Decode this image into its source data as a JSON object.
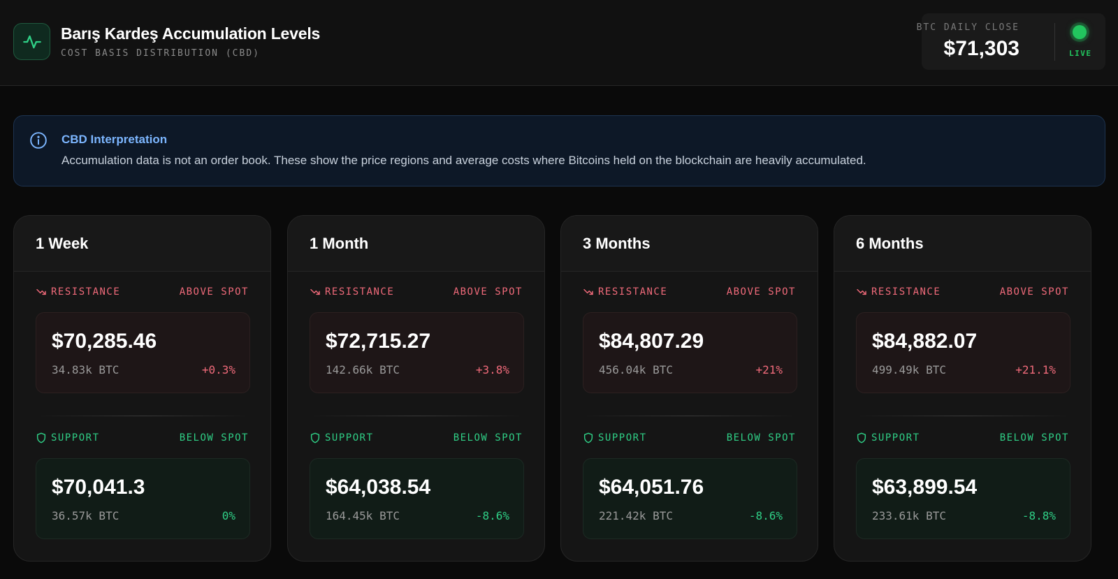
{
  "header": {
    "title": "Barış Kardeş Accumulation Levels",
    "subtitle": "COST BASIS DISTRIBUTION (CBD)",
    "logo_icon": "activity-icon",
    "price_label": "BTC DAILY CLOSE",
    "price_value": "$71,303",
    "live_label": "LIVE",
    "live_color": "#22c55e"
  },
  "info": {
    "icon": "info-icon",
    "title": "CBD Interpretation",
    "text": "Accumulation data is not an order book. These show the price regions and average costs where Bitcoins held on the blockchain are heavily accumulated."
  },
  "colors": {
    "resistance": "#f06a7a",
    "support": "#2fcf86",
    "info": "#7cb6ff"
  },
  "cards": [
    {
      "title": "1 Week",
      "resistance": {
        "label": "RESISTANCE",
        "position": "ABOVE SPOT",
        "price": "$70,285.46",
        "btc": "34.83k BTC",
        "pct": "+0.3%"
      },
      "support": {
        "label": "SUPPORT",
        "position": "BELOW SPOT",
        "price": "$70,041.3",
        "btc": "36.57k BTC",
        "pct": "0%"
      }
    },
    {
      "title": "1 Month",
      "resistance": {
        "label": "RESISTANCE",
        "position": "ABOVE SPOT",
        "price": "$72,715.27",
        "btc": "142.66k BTC",
        "pct": "+3.8%"
      },
      "support": {
        "label": "SUPPORT",
        "position": "BELOW SPOT",
        "price": "$64,038.54",
        "btc": "164.45k BTC",
        "pct": "-8.6%"
      }
    },
    {
      "title": "3 Months",
      "resistance": {
        "label": "RESISTANCE",
        "position": "ABOVE SPOT",
        "price": "$84,807.29",
        "btc": "456.04k BTC",
        "pct": "+21%"
      },
      "support": {
        "label": "SUPPORT",
        "position": "BELOW SPOT",
        "price": "$64,051.76",
        "btc": "221.42k BTC",
        "pct": "-8.6%"
      }
    },
    {
      "title": "6 Months",
      "resistance": {
        "label": "RESISTANCE",
        "position": "ABOVE SPOT",
        "price": "$84,882.07",
        "btc": "499.49k BTC",
        "pct": "+21.1%"
      },
      "support": {
        "label": "SUPPORT",
        "position": "BELOW SPOT",
        "price": "$63,899.54",
        "btc": "233.61k BTC",
        "pct": "-8.8%"
      }
    }
  ]
}
